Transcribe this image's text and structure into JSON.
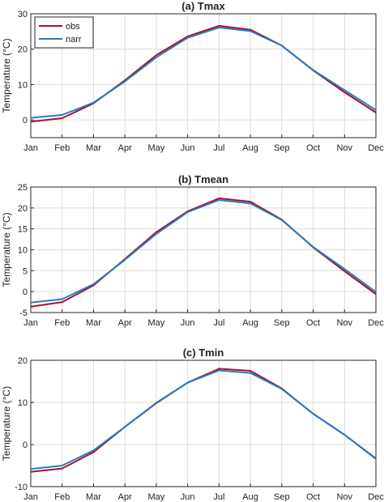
{
  "chart_data": [
    {
      "type": "line",
      "title": "(a) Tmax",
      "xlabel": "",
      "ylabel": "Temperature (°C)",
      "categories": [
        "Jan",
        "Feb",
        "Mar",
        "Apr",
        "May",
        "Jun",
        "Jul",
        "Aug",
        "Sep",
        "Oct",
        "Nov",
        "Dec"
      ],
      "ylim": [
        -5,
        30
      ],
      "yticks": [
        0,
        10,
        20,
        30
      ],
      "grid": true,
      "legend": "top-left",
      "series": [
        {
          "name": "obs",
          "color": "#a2142f",
          "values": [
            -0.5,
            0.5,
            4.7,
            11.2,
            18.3,
            23.6,
            26.6,
            25.5,
            21.0,
            14.0,
            7.8,
            2.1
          ]
        },
        {
          "name": "narr",
          "color": "#2b7bba",
          "values": [
            0.6,
            1.4,
            4.9,
            10.9,
            17.7,
            23.2,
            26.1,
            25.1,
            21.0,
            14.1,
            8.4,
            2.8
          ]
        }
      ]
    },
    {
      "type": "line",
      "title": "(b) Tmean",
      "xlabel": "",
      "ylabel": "Temperature (°C)",
      "categories": [
        "Jan",
        "Feb",
        "Mar",
        "Apr",
        "May",
        "Jun",
        "Jul",
        "Aug",
        "Sep",
        "Oct",
        "Nov",
        "Dec"
      ],
      "ylim": [
        -5,
        25
      ],
      "yticks": [
        -5,
        0,
        5,
        10,
        15,
        20,
        25
      ],
      "grid": true,
      "legend": "",
      "series": [
        {
          "name": "obs",
          "color": "#a2142f",
          "values": [
            -3.6,
            -2.5,
            1.5,
            7.8,
            14.2,
            19.2,
            22.3,
            21.5,
            17.2,
            10.6,
            4.9,
            -0.6
          ]
        },
        {
          "name": "narr",
          "color": "#2b7bba",
          "values": [
            -2.6,
            -1.8,
            1.8,
            7.6,
            13.8,
            19.0,
            21.9,
            21.1,
            17.1,
            10.7,
            5.4,
            -0.1
          ]
        }
      ]
    },
    {
      "type": "line",
      "title": "(c) Tmin",
      "xlabel": "",
      "ylabel": "Temperature (°C)",
      "categories": [
        "Jan",
        "Feb",
        "Mar",
        "Apr",
        "May",
        "Jun",
        "Jul",
        "Aug",
        "Sep",
        "Oct",
        "Nov",
        "Dec"
      ],
      "ylim": [
        -10,
        20
      ],
      "yticks": [
        -10,
        0,
        10,
        20
      ],
      "grid": true,
      "legend": "",
      "series": [
        {
          "name": "obs",
          "color": "#a2142f",
          "values": [
            -6.5,
            -5.7,
            -1.8,
            4.2,
            9.8,
            14.7,
            18.0,
            17.5,
            13.3,
            7.3,
            2.3,
            -3.4
          ]
        },
        {
          "name": "narr",
          "color": "#2b7bba",
          "values": [
            -5.8,
            -5.0,
            -1.4,
            4.2,
            9.9,
            14.7,
            17.6,
            17.0,
            13.2,
            7.3,
            2.3,
            -3.3
          ]
        }
      ]
    }
  ]
}
